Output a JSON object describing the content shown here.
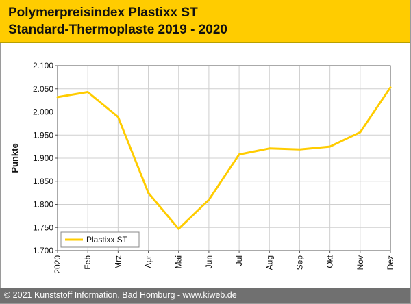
{
  "header": {
    "title_line1": "Polymerpreisindex Plastixx ST",
    "title_line2": "Standard-Thermoplaste 2019 - 2020"
  },
  "footer": {
    "text": "© 2021 Kunststoff Information, Bad Homburg - www.kiweb.de"
  },
  "colors": {
    "header_bg": "#ffcc00",
    "series": "#ffcc00",
    "footer_bg": "#707070"
  },
  "chart_data": {
    "type": "line",
    "ylabel": "Punkte",
    "ylim": [
      1700,
      2100
    ],
    "ytick_values": [
      1700,
      1750,
      1800,
      1850,
      1900,
      1950,
      2000,
      2050,
      2100
    ],
    "ytick_labels": [
      "1.700",
      "1.750",
      "1.800",
      "1.850",
      "1.900",
      "1.950",
      "2.000",
      "2.050",
      "2.100"
    ],
    "categories": [
      "2020",
      "Feb",
      "Mrz",
      "Apr",
      "Mai",
      "Jun",
      "Jul",
      "Aug",
      "Sep",
      "Okt",
      "Nov",
      "Dez"
    ],
    "grid": true,
    "legend_position": "bottom-left",
    "series": [
      {
        "name": "Plastixx ST",
        "values": [
          2032,
          2043,
          1989,
          1825,
          1747,
          1810,
          1908,
          1921,
          1919,
          1925,
          1956,
          2053
        ]
      }
    ]
  }
}
